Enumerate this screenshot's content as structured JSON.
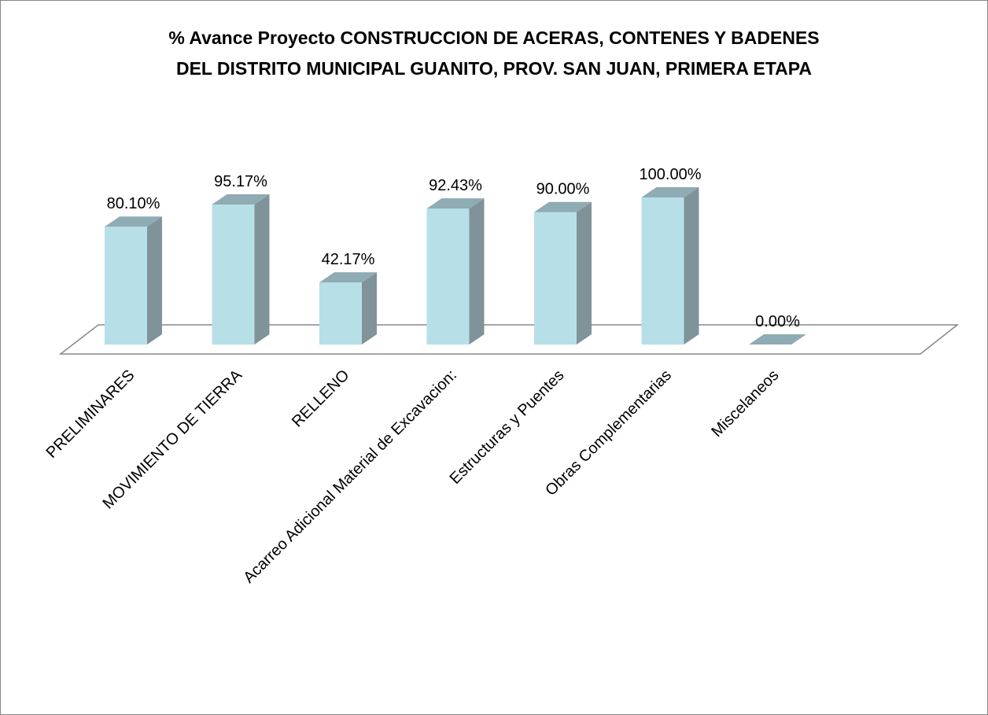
{
  "chart_data": {
    "type": "bar3d",
    "title": [
      "% Avance Proyecto  CONSTRUCCION DE ACERAS, CONTENES Y  BADENES",
      "DEL DISTRITO MUNICIPAL GUANITO, PROV. SAN JUAN, PRIMERA ETAPA"
    ],
    "categories": [
      "PRELIMINARES",
      "MOVIMIENTO DE TIERRA",
      "RELLENO",
      "Acarreo Adicional Material de Excavacion:",
      "Estructuras y Puentes",
      "Obras Complementarias",
      "Miscelaneos"
    ],
    "values": [
      80.1,
      95.17,
      42.17,
      92.43,
      90,
      100,
      0
    ],
    "value_labels": [
      "80.10%",
      "95.17%",
      "42.17%",
      "92.43%",
      "90.00%",
      "100.00%",
      "0.00%"
    ],
    "color": "#b7dfe8"
  }
}
